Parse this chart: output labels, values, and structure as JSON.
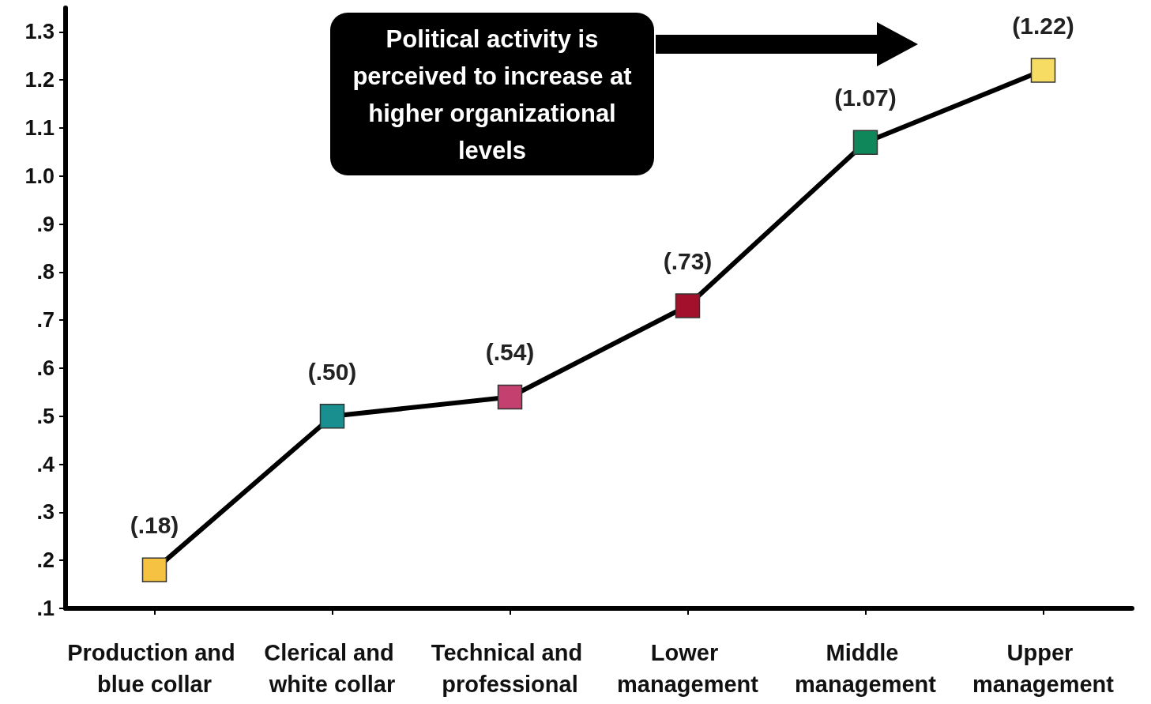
{
  "chart_data": {
    "type": "line",
    "categories": [
      "Production and blue collar",
      "Clerical and white collar",
      "Technical and professional",
      "Lower management",
      "Middle management",
      "Upper management"
    ],
    "series": [
      {
        "color": "#000000",
        "colors": [
          "#f5c242",
          "#1a8f8f",
          "#c4406e",
          "#a3102c",
          "#10875a",
          "#f7dc64"
        ],
        "values": [
          0.18,
          0.5,
          0.54,
          0.73,
          1.07,
          1.22
        ],
        "value_labels": [
          "(.18)",
          "(.50)",
          "(.54)",
          "(.73)",
          "(1.07)",
          "(1.22)"
        ]
      }
    ],
    "ylim": [
      0.1,
      1.35
    ],
    "yticks": [
      {
        "value": 0.1,
        "label": ".1"
      },
      {
        "value": 0.2,
        "label": ".2"
      },
      {
        "value": 0.3,
        "label": ".3"
      },
      {
        "value": 0.4,
        "label": ".4"
      },
      {
        "value": 0.5,
        "label": ".5"
      },
      {
        "value": 0.6,
        "label": ".6"
      },
      {
        "value": 0.7,
        "label": ".7"
      },
      {
        "value": 0.8,
        "label": ".8"
      },
      {
        "value": 0.9,
        "label": ".9"
      },
      {
        "value": 1.0,
        "label": "1.0"
      },
      1.1,
      1.2,
      1.3
    ],
    "annotations": [
      "Political activity is perceived to increase at higher organizational levels"
    ],
    "marker": "square",
    "line_style": "solid",
    "grid": false
  }
}
